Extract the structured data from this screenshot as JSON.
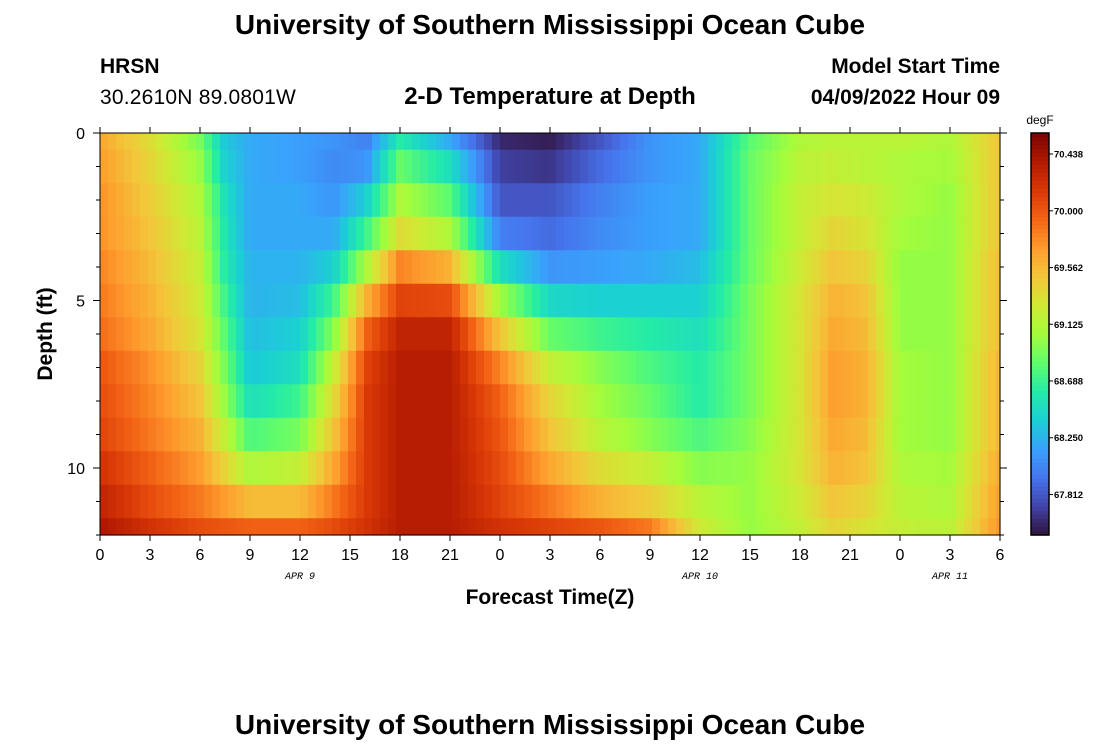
{
  "header": {
    "title": "University of Southern Mississippi Ocean Cube",
    "footer_title": "University of Southern Mississippi Ocean Cube",
    "station": "HRSN",
    "coordinates": "30.2610N  89.0801W",
    "subtitle": "2-D Temperature at Depth",
    "model_start_label": "Model Start Time",
    "model_start_value": "04/09/2022 Hour 09"
  },
  "colors": {
    "colormap": [
      "#30123b",
      "#4145ab",
      "#4675ed",
      "#39a2fc",
      "#1bcfd4",
      "#24eca6",
      "#61fc6c",
      "#a4fc3b",
      "#d1e834",
      "#f3c63a",
      "#fe9b2d",
      "#f36315",
      "#d93806",
      "#b11901",
      "#7a0402"
    ]
  },
  "chart_data": {
    "type": "heatmap",
    "xlabel": "Forecast Time(Z)",
    "ylabel": "Depth (ft)",
    "colorbar_unit": "degF",
    "x_range_hours": [
      0,
      54
    ],
    "x_ticks": [
      "0",
      "3",
      "6",
      "9",
      "12",
      "15",
      "18",
      "21",
      "0",
      "3",
      "6",
      "9",
      "12",
      "15",
      "18",
      "21",
      "0",
      "3",
      "6"
    ],
    "date_labels": [
      {
        "label": "APR 9",
        "hour": 12
      },
      {
        "label": "APR 10",
        "hour": 36
      },
      {
        "label": "APR 11",
        "hour": 51
      }
    ],
    "y_range_ft": [
      0,
      12
    ],
    "y_ticks": [
      "0",
      "5",
      "10"
    ],
    "color_range": [
      67.5,
      70.6
    ],
    "colorbar_ticks": [
      "70.438",
      "70.000",
      "69.562",
      "69.125",
      "68.688",
      "68.250",
      "67.812"
    ],
    "depth_layer_boundaries_ft": [
      0,
      0.5,
      1.5,
      2.5,
      3.5,
      4.5,
      5.5,
      6.5,
      7.5,
      8.5,
      9.5,
      10.5,
      11.5,
      12
    ],
    "time_hours": [
      0,
      3,
      6,
      7.5,
      9,
      12,
      14,
      16,
      18,
      21,
      24,
      27,
      30,
      33,
      36,
      39,
      42,
      44,
      46,
      48,
      51,
      54
    ],
    "values_by_depth_layer": [
      [
        69.65,
        69.35,
        68.9,
        68.35,
        68.2,
        68.15,
        68.1,
        68.0,
        68.6,
        68.2,
        67.6,
        67.55,
        67.8,
        68.1,
        68.2,
        68.8,
        69.1,
        69.15,
        69.15,
        69.15,
        69.1,
        69.5
      ],
      [
        69.7,
        69.4,
        69.0,
        68.4,
        68.2,
        68.15,
        68.05,
        68.1,
        68.85,
        68.5,
        67.7,
        67.65,
        67.9,
        68.1,
        68.2,
        68.85,
        69.15,
        69.2,
        69.15,
        69.1,
        69.05,
        69.5
      ],
      [
        69.75,
        69.45,
        69.1,
        68.5,
        68.2,
        68.2,
        68.1,
        68.4,
        69.1,
        68.8,
        67.8,
        67.8,
        68.0,
        68.15,
        68.2,
        68.85,
        69.2,
        69.3,
        69.25,
        69.1,
        69.0,
        69.5
      ],
      [
        69.75,
        69.5,
        69.15,
        68.55,
        68.2,
        68.2,
        68.2,
        68.7,
        69.35,
        69.1,
        68.0,
        67.9,
        68.05,
        68.15,
        68.2,
        68.85,
        69.2,
        69.4,
        69.3,
        69.05,
        69.0,
        69.5
      ],
      [
        69.8,
        69.55,
        69.2,
        68.6,
        68.25,
        68.25,
        68.4,
        69.1,
        69.8,
        69.6,
        68.5,
        68.1,
        68.15,
        68.2,
        68.3,
        68.85,
        69.25,
        69.5,
        69.4,
        69.0,
        69.0,
        69.55
      ],
      [
        69.85,
        69.6,
        69.25,
        68.7,
        68.25,
        68.3,
        68.7,
        69.6,
        70.1,
        70.05,
        69.05,
        68.45,
        68.4,
        68.4,
        68.4,
        68.9,
        69.3,
        69.6,
        69.5,
        69.0,
        69.0,
        69.55
      ],
      [
        69.9,
        69.65,
        69.3,
        68.8,
        68.3,
        68.4,
        68.95,
        69.95,
        70.3,
        70.3,
        69.5,
        68.85,
        68.7,
        68.6,
        68.5,
        68.9,
        69.3,
        69.65,
        69.55,
        69.0,
        69.0,
        69.55
      ],
      [
        70.0,
        69.75,
        69.4,
        68.9,
        68.35,
        68.5,
        69.2,
        70.1,
        70.35,
        70.35,
        69.8,
        69.2,
        68.95,
        68.75,
        68.6,
        68.9,
        69.3,
        69.7,
        69.6,
        69.05,
        69.0,
        69.6
      ],
      [
        70.05,
        69.8,
        69.5,
        69.0,
        68.5,
        68.7,
        69.35,
        70.15,
        70.35,
        70.35,
        69.95,
        69.4,
        69.05,
        68.85,
        68.6,
        68.9,
        69.3,
        69.7,
        69.6,
        69.05,
        69.0,
        69.6
      ],
      [
        70.1,
        69.85,
        69.6,
        69.2,
        68.75,
        68.9,
        69.5,
        70.15,
        70.35,
        70.35,
        70.0,
        69.5,
        69.15,
        68.95,
        68.75,
        68.95,
        69.3,
        69.65,
        69.55,
        69.05,
        69.0,
        69.6
      ],
      [
        70.2,
        69.95,
        69.7,
        69.4,
        69.1,
        69.2,
        69.65,
        70.15,
        70.35,
        70.35,
        70.05,
        69.65,
        69.35,
        69.2,
        68.95,
        69.0,
        69.3,
        69.6,
        69.5,
        69.1,
        69.05,
        69.65
      ],
      [
        70.3,
        70.05,
        69.85,
        69.7,
        69.55,
        69.55,
        69.85,
        70.15,
        70.35,
        70.35,
        70.1,
        69.85,
        69.6,
        69.45,
        69.15,
        69.0,
        69.25,
        69.5,
        69.4,
        69.15,
        69.1,
        69.7
      ],
      [
        70.4,
        70.2,
        70.05,
        70.0,
        69.95,
        69.95,
        70.05,
        70.2,
        70.35,
        70.35,
        70.2,
        70.1,
        70.0,
        69.85,
        69.25,
        69.0,
        69.2,
        69.4,
        69.3,
        69.2,
        69.15,
        69.75
      ]
    ]
  }
}
